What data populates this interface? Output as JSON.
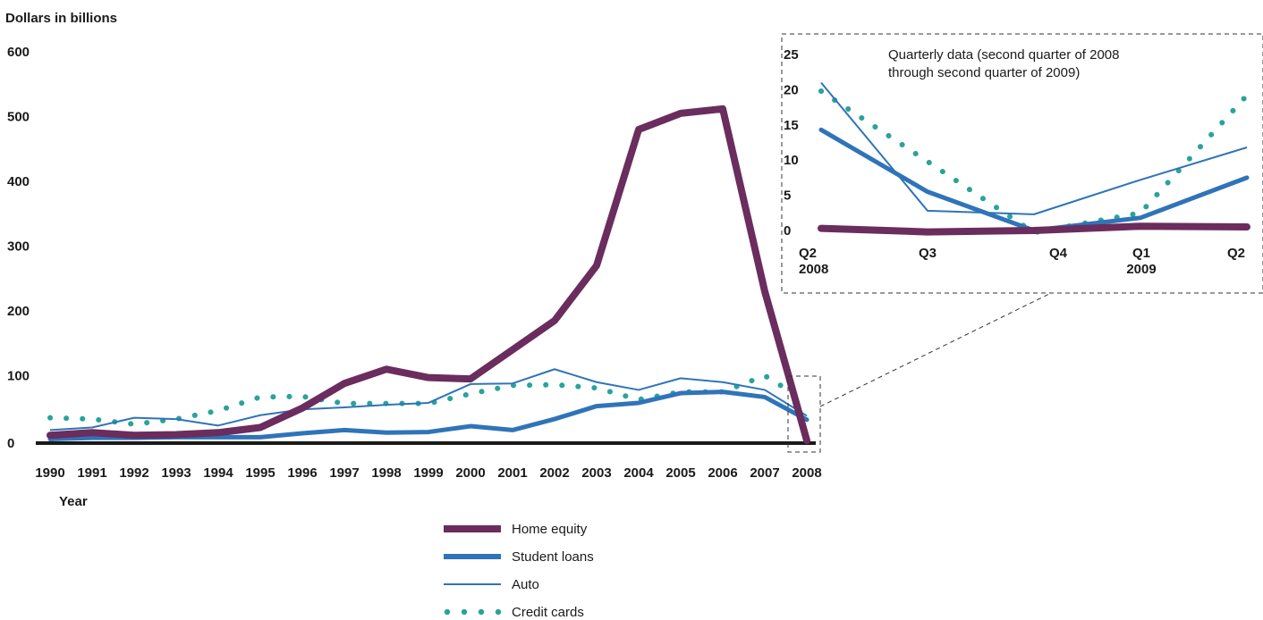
{
  "colors": {
    "home_equity": "#6b2c5e",
    "student_loans": "#2f74b9",
    "auto": "#2f74b9",
    "credit_cards": "#2aa39a",
    "axis": "#1a1a1a",
    "dashed_box": "#333333"
  },
  "chart_data": [
    {
      "type": "line",
      "ylabel": "Dollars in billions",
      "xlabel": "Year",
      "ylim": [
        0,
        600
      ],
      "yticks": [
        "0",
        "100",
        "200",
        "300",
        "400",
        "500",
        "600"
      ],
      "x": [
        "1990",
        "1991",
        "1992",
        "1993",
        "1994",
        "1995",
        "1996",
        "1997",
        "1998",
        "1999",
        "2000",
        "2001",
        "2002",
        "2003",
        "2004",
        "2005",
        "2006",
        "2007",
        "2008"
      ],
      "grid": false,
      "legend_placement": "bottom-center",
      "series": [
        {
          "name": "Home equity",
          "style": "thick",
          "values": [
            8,
            12,
            8,
            9,
            12,
            20,
            50,
            88,
            110,
            97,
            95,
            140,
            185,
            270,
            480,
            505,
            512,
            230,
            0
          ]
        },
        {
          "name": "Student loans",
          "style": "medium",
          "values": [
            2,
            4,
            4,
            5,
            5,
            5,
            11,
            16,
            12,
            13,
            22,
            16,
            33,
            53,
            58,
            73,
            75,
            67,
            32
          ]
        },
        {
          "name": "Auto",
          "style": "thin",
          "values": [
            16,
            20,
            35,
            33,
            23,
            39,
            48,
            51,
            55,
            58,
            87,
            88,
            110,
            90,
            78,
            96,
            90,
            78,
            38
          ]
        },
        {
          "name": "Credit cards",
          "style": "dotted",
          "values": [
            35,
            33,
            25,
            33,
            46,
            67,
            68,
            57,
            57,
            57,
            72,
            85,
            86,
            81,
            63,
            75,
            75,
            100,
            60
          ]
        }
      ]
    },
    {
      "type": "line",
      "title": "Quarterly data (second quarter of 2008 through second quarter of 2009)",
      "ylim": [
        0,
        25
      ],
      "yticks": [
        "0",
        "5",
        "10",
        "15",
        "20",
        "25"
      ],
      "x": [
        "Q2",
        "Q3",
        "Q4",
        "Q1",
        "Q2"
      ],
      "x_sub": [
        "2008",
        "",
        "",
        "2009",
        ""
      ],
      "series": [
        {
          "name": "Home equity",
          "style": "thick",
          "values": [
            0.3,
            -0.2,
            0,
            0.6,
            0.5
          ]
        },
        {
          "name": "Student loans",
          "style": "medium",
          "values": [
            14.3,
            5.5,
            0,
            1.8,
            7.5
          ]
        },
        {
          "name": "Auto",
          "style": "thin",
          "values": [
            21,
            2.8,
            2.3,
            7.2,
            11.8
          ]
        },
        {
          "name": "Credit cards",
          "style": "dotted",
          "values": [
            19.8,
            9.8,
            -0.3,
            2.5,
            19.2
          ]
        }
      ]
    }
  ],
  "legend": [
    "Home equity",
    "Student loans",
    "Auto",
    "Credit cards"
  ]
}
